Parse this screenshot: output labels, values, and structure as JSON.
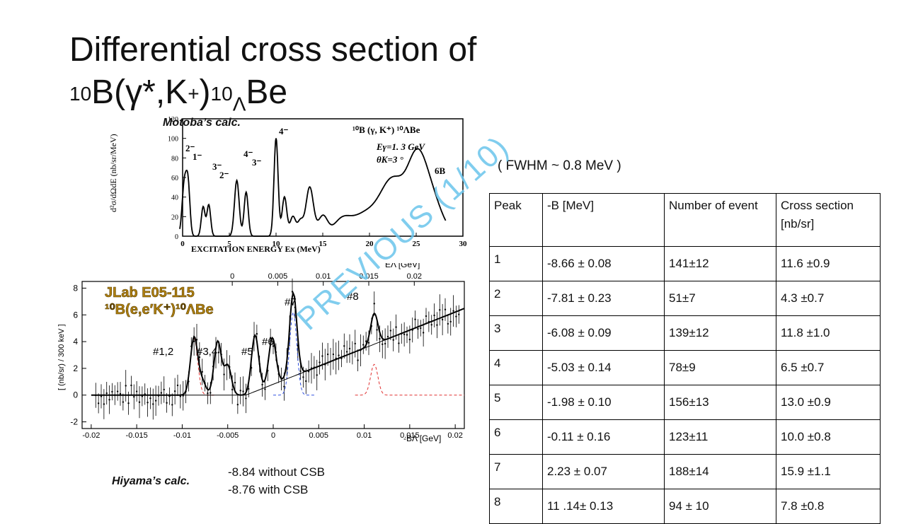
{
  "slide": {
    "title_line1": "Differential cross section of",
    "title_line2_mass_b": "10",
    "title_line2_body": "B(γ*,K",
    "title_line2_plus": "+",
    "title_line2_close": ")",
    "title_line2_mass_be": "10",
    "title_line2_lambda": "Λ",
    "title_line2_be": "Be",
    "fwhm": "( FWHM ~ 0.8 MeV )",
    "watermark": "PREVIOUS (1/10)"
  },
  "figure_top": {
    "caption_label": "Motoba’s calc.",
    "y_label": "d²σ/dΩdE  (nb/sr/MeV)",
    "x_label": "EXCITATION ENERGY  Ex   (MeV)",
    "reaction": "¹⁰B (γ, K⁺) ¹⁰ΛBe",
    "params": [
      "Eγ=1. 3  GeV",
      "θK=3 °",
      "6B"
    ],
    "x_ticks": [
      "0",
      "5",
      "10",
      "15",
      "20",
      "25",
      "30"
    ],
    "y_ticks": [
      "0",
      "20",
      "40",
      "60",
      "80",
      "100",
      "120"
    ],
    "state_labels": [
      "2⁻",
      "1⁻",
      "3⁻",
      "2⁻",
      "4⁻",
      "3⁻",
      "4⁻"
    ]
  },
  "figure_bottom": {
    "title_line1": "JLab E05-115",
    "title_line2": "¹⁰B(e,e′K⁺)¹⁰ΛBe",
    "y_label": "[ (nb/sr) / 300 keV ]",
    "x_label_bottom": "-BΛ [GeV]",
    "x_label_top": "EΛ [GeV]",
    "x_ticks_bottom": [
      "-0.02",
      "-0.015",
      "-0.01",
      "-0.005",
      "0",
      "0.005",
      "0.01",
      "0.015",
      "0.02"
    ],
    "x_ticks_top": [
      "0",
      "0.005",
      "0.01",
      "0.015",
      "0.02"
    ],
    "y_ticks": [
      "-2",
      "0",
      "2",
      "4",
      "6",
      "8"
    ],
    "peak_labels": [
      "#1,2",
      "#3,4",
      "#5",
      "#6",
      "#7",
      "#8"
    ]
  },
  "hiyama": {
    "label": "Hiyama’s calc.",
    "values": [
      "-8.84 without CSB",
      "-8.76 with CSB"
    ]
  },
  "table": {
    "headers": [
      "Peak",
      "-B [MeV]",
      "Number of event",
      "Cross section [nb/sr]"
    ],
    "rows": [
      [
        "1",
        "-8.66 ± 0.08",
        "141±12",
        "11.6 ±0.9"
      ],
      [
        "2",
        "-7.81 ± 0.23",
        "51±7",
        "4.3 ±0.7"
      ],
      [
        "3",
        "-6.08 ± 0.09",
        "139±12",
        "11.8 ±1.0"
      ],
      [
        "4",
        "-5.03 ± 0.14",
        "78±9",
        "6.5 ±0.7"
      ],
      [
        "5",
        "-1.98 ± 0.10",
        "156±13",
        "13.0 ±0.9"
      ],
      [
        "6",
        "-0.11 ± 0.16",
        "123±11",
        "10.0 ±0.8"
      ],
      [
        "7",
        "2.23 ± 0.07",
        "188±14",
        "15.9 ±1.1"
      ],
      [
        "8",
        "11 .14± 0.13",
        "94 ± 10",
        "7.8 ±0.8"
      ]
    ]
  }
}
